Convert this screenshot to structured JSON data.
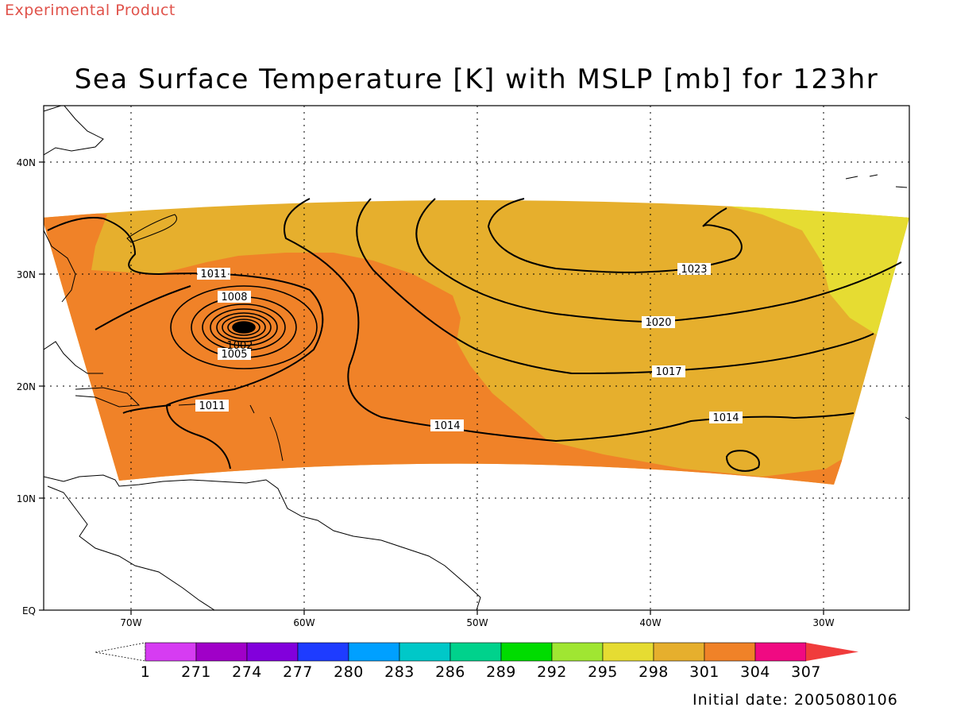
{
  "header": {
    "experimental": "Experimental Product",
    "title": "Sea Surface Temperature [K] with MSLP [mb] for 123hr"
  },
  "footer": {
    "initial_date": "Initial date: 2005080106"
  },
  "axes": {
    "lon_ticks": [
      "70W",
      "60W",
      "50W",
      "40W",
      "30W"
    ],
    "lat_ticks": [
      "EQ",
      "10N",
      "20N",
      "30N",
      "40N"
    ]
  },
  "colorbar": {
    "labels": [
      "1",
      "271",
      "274",
      "277",
      "280",
      "283",
      "286",
      "289",
      "292",
      "295",
      "298",
      "301",
      "304",
      "307"
    ],
    "colors": [
      "#d63cf2",
      "#a000c8",
      "#8200dc",
      "#1e3cff",
      "#00a0ff",
      "#00c8c8",
      "#00d28c",
      "#00dc00",
      "#a0e632",
      "#e6dc32",
      "#e6af2d",
      "#f08228",
      "#f00a82",
      "#f03c3c"
    ]
  },
  "colors": {
    "sst_298": "#e6dc32",
    "sst_301": "#e6af2d",
    "sst_304": "#f08228",
    "contour": "#000000",
    "coast": "#000000"
  },
  "isobars": {
    "labels": [
      "1011",
      "1008",
      "1005",
      "1002",
      "1011",
      "1014",
      "1014",
      "1017",
      "1020",
      "1023"
    ]
  }
}
